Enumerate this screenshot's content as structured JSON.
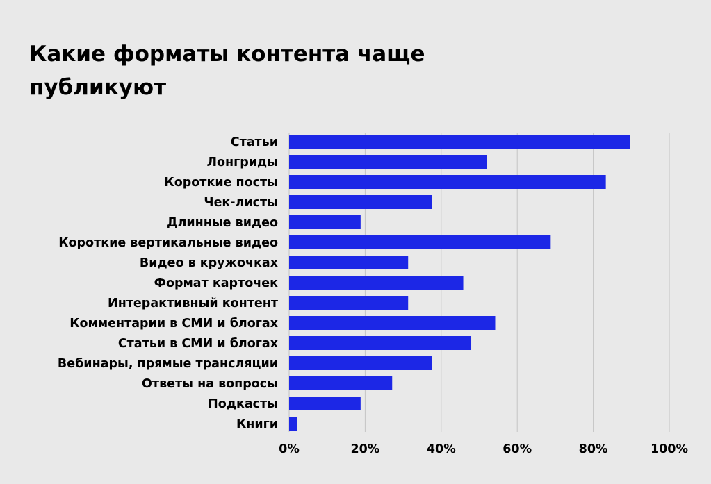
{
  "chart_data": {
    "type": "bar",
    "orientation": "horizontal",
    "title": "Какие форматы контента чаще публикуют",
    "categories": [
      "Статьи",
      "Лонгриды",
      "Короткие посты",
      "Чек-листы",
      "Длинные видео",
      "Короткие вертикальные видео",
      "Видео в кружочках",
      "Формат карточек",
      "Интерактивный контент",
      "Комментарии в СМИ и блогах",
      "Статьи в СМИ и блогах",
      "Вебинары, прямые трансляции",
      "Ответы на вопросы",
      "Подкасты",
      "Книги"
    ],
    "values": [
      89.6,
      52.1,
      83.3,
      37.5,
      18.8,
      68.8,
      31.3,
      45.8,
      31.3,
      54.2,
      47.9,
      37.5,
      27.1,
      18.8,
      2.1
    ],
    "xlim": [
      0,
      100
    ],
    "xticks": [
      "0%",
      "20%",
      "40%",
      "60%",
      "80%",
      "100%"
    ],
    "xtick_values": [
      0,
      20,
      40,
      60,
      80,
      100
    ],
    "grid": "vertical",
    "legend": "none",
    "bar_color": "#1c27e6",
    "grid_color": "#c4c4c4",
    "background": "#e9e9e9"
  }
}
